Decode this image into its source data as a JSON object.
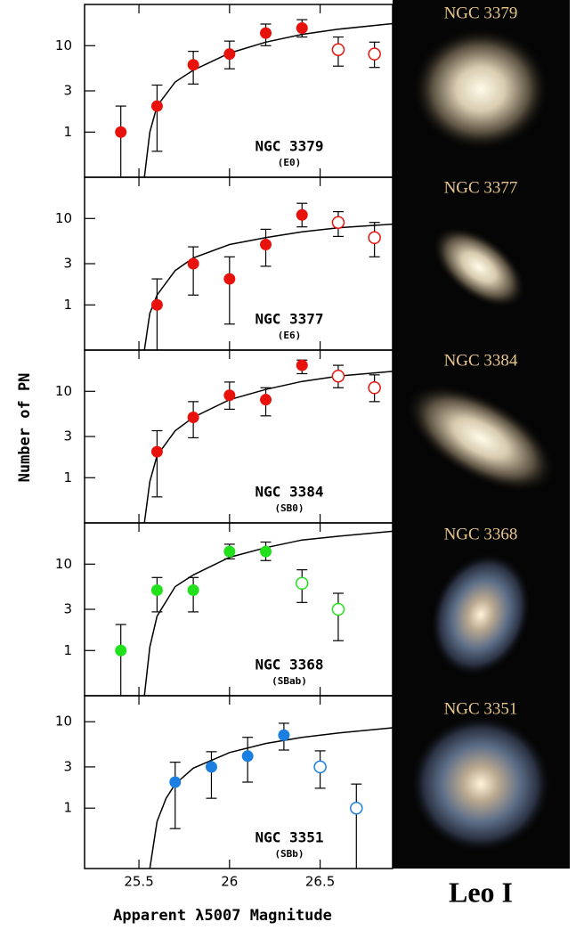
{
  "chart_data": [
    {
      "type": "scatter",
      "title": "NGC 3379",
      "subtitle": "(E0)",
      "color": "#e8120c",
      "log_y": true,
      "xlim": [
        25.2,
        26.9
      ],
      "ylim": [
        0.3,
        30
      ],
      "yticks": [
        1,
        3,
        10
      ],
      "xticks": [
        25.5,
        26,
        26.5
      ],
      "show_xtick_labels": false,
      "x": [
        25.4,
        25.6,
        25.8,
        26.0,
        26.2,
        26.4,
        26.6,
        26.8
      ],
      "values": [
        1,
        2,
        6,
        8,
        14,
        16,
        9,
        8
      ],
      "lower": [
        0,
        0.6,
        3.6,
        5.4,
        10,
        12.6,
        5.8,
        5.6
      ],
      "upper": [
        2,
        3.5,
        8.6,
        11.3,
        17.8,
        20,
        12.6,
        11
      ],
      "open": [
        false,
        false,
        false,
        false,
        false,
        false,
        true,
        true
      ],
      "fit": {
        "x": [
          25.53,
          25.56,
          25.6,
          25.7,
          25.8,
          26.0,
          26.2,
          26.4,
          26.6,
          26.9
        ],
        "values": [
          0.3,
          1.0,
          2.0,
          3.8,
          5.2,
          8.2,
          11,
          13.5,
          15.5,
          18
        ]
      }
    },
    {
      "type": "scatter",
      "title": "NGC 3377",
      "subtitle": "(E6)",
      "color": "#e8120c",
      "log_y": true,
      "xlim": [
        25.2,
        26.9
      ],
      "ylim": [
        0.3,
        30
      ],
      "yticks": [
        1,
        3,
        10
      ],
      "xticks": [
        25.5,
        26,
        26.5
      ],
      "show_xtick_labels": false,
      "x": [
        25.6,
        25.8,
        26.0,
        26.2,
        26.4,
        26.6,
        26.8
      ],
      "values": [
        1,
        3,
        2,
        5,
        11,
        9,
        6
      ],
      "lower": [
        0,
        1.3,
        0.6,
        2.8,
        8,
        6.2,
        3.6
      ],
      "upper": [
        2,
        4.7,
        3.6,
        7.5,
        15,
        12,
        9
      ],
      "open": [
        false,
        false,
        false,
        false,
        false,
        true,
        true
      ],
      "fit": {
        "x": [
          25.53,
          25.56,
          25.6,
          25.7,
          25.8,
          26.0,
          26.2,
          26.4,
          26.6,
          26.9
        ],
        "values": [
          0.3,
          0.8,
          1.3,
          2.5,
          3.5,
          5,
          6,
          7,
          7.8,
          8.6
        ]
      }
    },
    {
      "type": "scatter",
      "title": "NGC 3384",
      "subtitle": "(SB0)",
      "color": "#e8120c",
      "log_y": true,
      "xlim": [
        25.2,
        26.9
      ],
      "ylim": [
        0.3,
        30
      ],
      "yticks": [
        1,
        3,
        10
      ],
      "xticks": [
        25.5,
        26,
        26.5
      ],
      "show_xtick_labels": false,
      "x": [
        25.6,
        25.8,
        26.0,
        26.2,
        26.4,
        26.6,
        26.8
      ],
      "values": [
        2,
        5,
        9,
        8,
        20,
        15,
        11
      ],
      "lower": [
        0.6,
        2.9,
        6.2,
        5.2,
        16,
        11,
        7.6
      ],
      "upper": [
        3.5,
        7.6,
        12.8,
        11,
        23,
        20,
        15.5
      ],
      "open": [
        false,
        false,
        false,
        false,
        false,
        true,
        true
      ],
      "fit": {
        "x": [
          25.53,
          25.56,
          25.6,
          25.7,
          25.8,
          26.0,
          26.2,
          26.4,
          26.6,
          26.9
        ],
        "values": [
          0.3,
          0.9,
          1.8,
          3.5,
          5,
          8,
          10.5,
          13,
          15,
          17
        ]
      }
    },
    {
      "type": "scatter",
      "title": "NGC 3368",
      "subtitle": "(SBab)",
      "color": "#22e01c",
      "log_y": true,
      "xlim": [
        25.2,
        26.9
      ],
      "ylim": [
        0.3,
        30
      ],
      "yticks": [
        1,
        3,
        10
      ],
      "xticks": [
        25.5,
        26,
        26.5
      ],
      "show_xtick_labels": false,
      "x": [
        25.4,
        25.6,
        25.8,
        26.0,
        26.2,
        26.4,
        26.6
      ],
      "values": [
        1,
        5,
        5,
        14,
        14,
        6,
        3
      ],
      "lower": [
        0,
        2.8,
        2.8,
        11.5,
        11,
        3.6,
        1.3
      ],
      "upper": [
        2,
        7,
        7,
        17,
        18,
        8.6,
        4.6
      ],
      "open": [
        false,
        false,
        false,
        false,
        false,
        true,
        true
      ],
      "fit": {
        "x": [
          25.53,
          25.56,
          25.6,
          25.7,
          25.8,
          26.0,
          26.2,
          26.4,
          26.6,
          26.9
        ],
        "values": [
          0.3,
          1.1,
          2.5,
          5.5,
          7.5,
          12,
          15.5,
          19,
          21,
          24
        ]
      }
    },
    {
      "type": "scatter",
      "title": "NGC 3351",
      "subtitle": "(SBb)",
      "color": "#1a7fe0",
      "log_y": true,
      "xlim": [
        25.2,
        26.9
      ],
      "ylim": [
        0.2,
        20
      ],
      "yticks": [
        1,
        3,
        10
      ],
      "xticks": [
        25.5,
        26,
        26.5
      ],
      "show_xtick_labels": true,
      "x": [
        25.7,
        25.9,
        26.1,
        26.3,
        26.5,
        26.7
      ],
      "values": [
        2,
        3,
        4,
        7,
        3,
        1
      ],
      "lower": [
        0.58,
        1.3,
        2,
        4.7,
        1.7,
        0
      ],
      "upper": [
        3.4,
        4.5,
        6.6,
        9.6,
        4.6,
        1.9
      ],
      "open": [
        false,
        false,
        false,
        false,
        true,
        true
      ],
      "fit": {
        "x": [
          25.56,
          25.6,
          25.65,
          25.7,
          25.8,
          26.0,
          26.2,
          26.4,
          26.6,
          26.9
        ],
        "values": [
          0.2,
          0.7,
          1.3,
          1.9,
          2.9,
          4.4,
          5.6,
          6.6,
          7.4,
          8.5
        ]
      }
    }
  ],
  "ylabel": "Number of PN",
  "xlabel": "Apparent λ5007 Magnitude",
  "images": [
    {
      "label": "NGC 3379"
    },
    {
      "label": "NGC 3377"
    },
    {
      "label": "NGC 3384"
    },
    {
      "label": "NGC 3368"
    },
    {
      "label": "NGC 3351"
    }
  ],
  "caption": "Leo I"
}
